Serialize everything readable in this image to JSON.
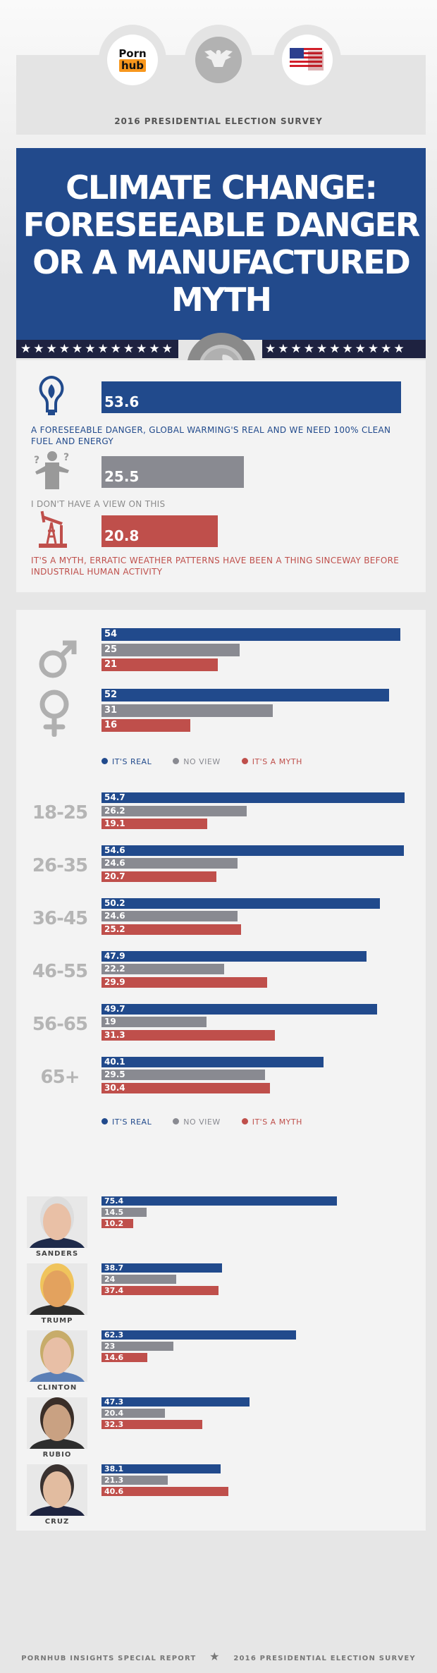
{
  "header": {
    "logo_text_top": "Porn",
    "logo_text_bottom": "hub",
    "subtitle": "2016 PRESIDENTIAL ELECTION SURVEY"
  },
  "title": {
    "lines": [
      "CLIMATE CHANGE:",
      "FORESEEABLE DANGER",
      "OR A MANUFACTURED",
      "MYTH"
    ]
  },
  "colors": {
    "real": "#214a8c",
    "no_view": "#898a91",
    "myth": "#bf4f4b",
    "title_bg": "#224a8c"
  },
  "overall": [
    {
      "icon": "lightbulb-leaf-icon",
      "value": 53.6,
      "label": "53.6",
      "text": "A FORESEEABLE DANGER, GLOBAL WARMING'S REAL AND WE NEED 100% CLEAN FUEL AND ENERGY",
      "series": "real"
    },
    {
      "icon": "confused-person-icon",
      "value": 25.5,
      "label": "25.5",
      "text": "I DON'T HAVE A VIEW ON THIS",
      "series": "none"
    },
    {
      "icon": "oil-pump-icon",
      "value": 20.8,
      "label": "20.8",
      "text": "IT'S A MYTH, ERRATIC WEATHER PATTERNS HAVE BEEN A THING SINCEWAY BEFORE INDUSTRIAL HUMAN ACTIVITY",
      "series": "myth"
    }
  ],
  "legend": {
    "real": "IT'S REAL",
    "none": "NO VIEW",
    "myth": "IT'S A MYTH"
  },
  "chart_data": [
    {
      "type": "bar",
      "title": "",
      "categories": [
        "male",
        "female"
      ],
      "series": [
        {
          "name": "IT'S REAL",
          "values": [
            54,
            52
          ]
        },
        {
          "name": "NO VIEW",
          "values": [
            25,
            31
          ]
        },
        {
          "name": "IT'S A MYTH",
          "values": [
            21,
            16
          ]
        }
      ]
    },
    {
      "type": "bar",
      "title": "",
      "categories": [
        "18-25",
        "26-35",
        "36-45",
        "46-55",
        "56-65",
        "65+"
      ],
      "series": [
        {
          "name": "IT'S REAL",
          "values": [
            54.7,
            54.6,
            50.2,
            47.9,
            49.7,
            40.1
          ]
        },
        {
          "name": "NO VIEW",
          "values": [
            26.2,
            24.6,
            24.6,
            22.2,
            19,
            29.5
          ]
        },
        {
          "name": "IT'S A MYTH",
          "values": [
            19.1,
            20.7,
            25.2,
            29.9,
            31.3,
            30.4
          ]
        }
      ]
    },
    {
      "type": "bar",
      "title": "",
      "categories": [
        "SANDERS",
        "TRUMP",
        "CLINTON",
        "RUBIO",
        "CRUZ"
      ],
      "series": [
        {
          "name": "IT'S REAL",
          "values": [
            75.4,
            38.7,
            62.3,
            47.3,
            38.1
          ]
        },
        {
          "name": "NO VIEW",
          "values": [
            14.5,
            24,
            23,
            20.4,
            21.3
          ]
        },
        {
          "name": "IT'S A MYTH",
          "values": [
            10.2,
            37.4,
            14.6,
            32.3,
            40.6
          ]
        }
      ]
    }
  ],
  "footer": {
    "left": "PORNHUB INSIGHTS SPECIAL REPORT",
    "right": "2016 PRESIDENTIAL ELECTION SURVEY"
  }
}
